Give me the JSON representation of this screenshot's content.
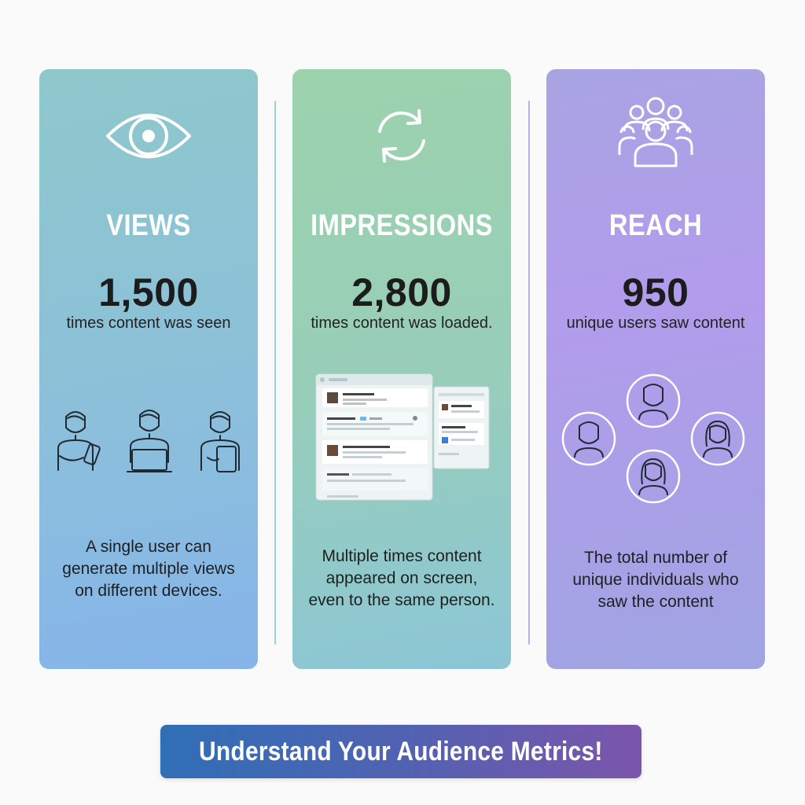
{
  "cards": [
    {
      "id": "views",
      "icon": "eye-icon",
      "title": "VIEWS",
      "value": "1,500",
      "subtitle": "times content was seen",
      "description": "A single user can generate multiple views on different devices."
    },
    {
      "id": "impressions",
      "icon": "refresh-icon",
      "title": "IMPRESSIONS",
      "value": "2,800",
      "subtitle": "times content was loaded.",
      "description": "Multiple times content appeared on screen, even to the same person."
    },
    {
      "id": "reach",
      "icon": "group-icon",
      "title": "REACH",
      "value": "950",
      "subtitle": "unique users saw content",
      "description": "The total number of unique individuals who saw the content"
    }
  ],
  "cta": {
    "label": "Understand Your Audience Metrics!"
  },
  "colors": {
    "views_card": "#8cc0da",
    "impressions_card": "#98ceb8",
    "reach_card": "#aaa2e6",
    "cta_start": "#2f6fb6",
    "cta_end": "#7b55ab"
  }
}
